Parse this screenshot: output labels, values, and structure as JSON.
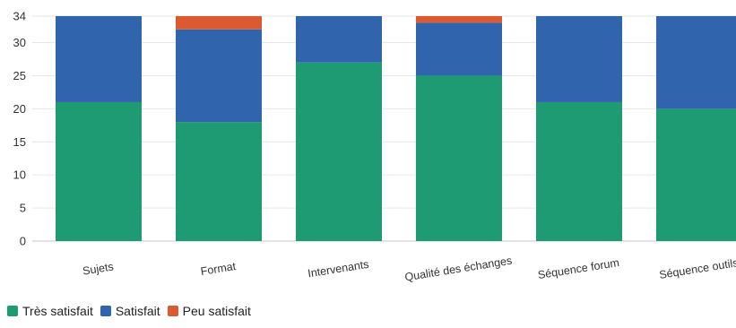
{
  "chart_data": {
    "type": "bar",
    "stacked": true,
    "categories": [
      "Sujets",
      "Format",
      "Intervenants",
      "Qualité des échanges",
      "Séquence forum",
      "Séquence outils"
    ],
    "series": [
      {
        "name": "Très satisfait",
        "color": "#1e9b73",
        "values": [
          21,
          18,
          27,
          25,
          21,
          20
        ]
      },
      {
        "name": "Satisfait",
        "color": "#3064ad",
        "values": [
          13,
          14,
          7,
          8,
          13,
          14
        ]
      },
      {
        "name": "Peu satisfait",
        "color": "#dc5a32",
        "values": [
          0,
          2,
          0,
          1,
          0,
          0
        ]
      }
    ],
    "ylim": [
      0,
      34
    ],
    "yticks": [
      0,
      5,
      10,
      15,
      20,
      25,
      30,
      34
    ],
    "grid": true,
    "legend": "bottom-left"
  }
}
